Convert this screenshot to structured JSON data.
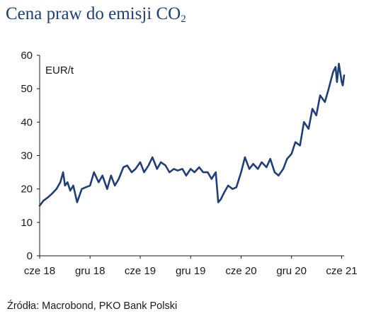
{
  "title": {
    "main": "Cena praw do emisji CO",
    "sub": "2"
  },
  "source": "Źródła: Macrobond, PKO Bank Polski",
  "colors": {
    "title": "#1f3f7a",
    "line": "#1f3f7a",
    "axis": "#1a1a1a"
  },
  "chart_data": {
    "type": "line",
    "title": "Cena praw do emisji CO2",
    "unit_label": "EUR/t",
    "xlabel": "",
    "ylabel": "",
    "ylim": [
      0,
      60
    ],
    "yticks": [
      0,
      10,
      20,
      30,
      40,
      50,
      60
    ],
    "xlim": [
      "2018-06-01",
      "2021-06-10"
    ],
    "xticks": [
      {
        "date": "2018-06-01",
        "label": "cze 18"
      },
      {
        "date": "2018-12-01",
        "label": "gru 18"
      },
      {
        "date": "2019-06-01",
        "label": "cze 19"
      },
      {
        "date": "2019-12-01",
        "label": "gru 19"
      },
      {
        "date": "2020-06-01",
        "label": "cze 20"
      },
      {
        "date": "2020-12-01",
        "label": "gru 20"
      },
      {
        "date": "2021-06-01",
        "label": "cze 21"
      }
    ],
    "grid": false,
    "series": [
      {
        "name": "",
        "x": [
          "2018-06-01",
          "2018-06-15",
          "2018-07-01",
          "2018-07-15",
          "2018-08-01",
          "2018-08-15",
          "2018-08-25",
          "2018-09-01",
          "2018-09-10",
          "2018-09-20",
          "2018-10-01",
          "2018-10-15",
          "2018-11-01",
          "2018-11-15",
          "2018-12-01",
          "2018-12-15",
          "2019-01-01",
          "2019-01-15",
          "2019-02-01",
          "2019-02-15",
          "2019-03-01",
          "2019-03-15",
          "2019-04-01",
          "2019-04-15",
          "2019-05-01",
          "2019-05-15",
          "2019-06-01",
          "2019-06-15",
          "2019-07-01",
          "2019-07-15",
          "2019-08-01",
          "2019-08-15",
          "2019-09-01",
          "2019-09-15",
          "2019-10-01",
          "2019-10-15",
          "2019-11-01",
          "2019-11-15",
          "2019-12-01",
          "2019-12-15",
          "2020-01-01",
          "2020-01-15",
          "2020-02-01",
          "2020-02-15",
          "2020-03-01",
          "2020-03-10",
          "2020-03-20",
          "2020-04-01",
          "2020-04-15",
          "2020-05-01",
          "2020-05-15",
          "2020-06-01",
          "2020-06-15",
          "2020-07-01",
          "2020-07-15",
          "2020-08-01",
          "2020-08-15",
          "2020-09-01",
          "2020-09-15",
          "2020-10-01",
          "2020-10-15",
          "2020-11-01",
          "2020-11-15",
          "2020-12-01",
          "2020-12-15",
          "2021-01-01",
          "2021-01-15",
          "2021-02-01",
          "2021-02-15",
          "2021-03-01",
          "2021-03-15",
          "2021-04-01",
          "2021-04-15",
          "2021-05-01",
          "2021-05-10",
          "2021-05-15",
          "2021-05-22",
          "2021-06-01",
          "2021-06-05",
          "2021-06-10"
        ],
        "y": [
          15,
          16.5,
          17.5,
          18.5,
          20,
          22,
          25,
          21,
          22,
          19.5,
          21,
          16,
          20,
          20.5,
          21,
          25,
          22,
          24,
          20,
          24,
          21,
          23,
          26.5,
          27,
          25,
          26,
          28,
          25,
          27,
          29.5,
          26,
          28,
          27,
          25,
          26,
          25.5,
          26,
          24,
          26,
          25,
          26.5,
          25,
          25,
          23,
          25,
          16,
          17,
          19,
          21,
          20,
          20.5,
          25,
          29.5,
          26,
          27.5,
          26,
          28,
          26.5,
          29,
          25,
          24,
          26,
          29,
          30.5,
          34,
          33,
          40,
          38,
          44,
          42,
          48,
          46,
          50,
          55,
          56.5,
          52,
          57.5,
          52,
          51,
          54
        ]
      }
    ]
  }
}
